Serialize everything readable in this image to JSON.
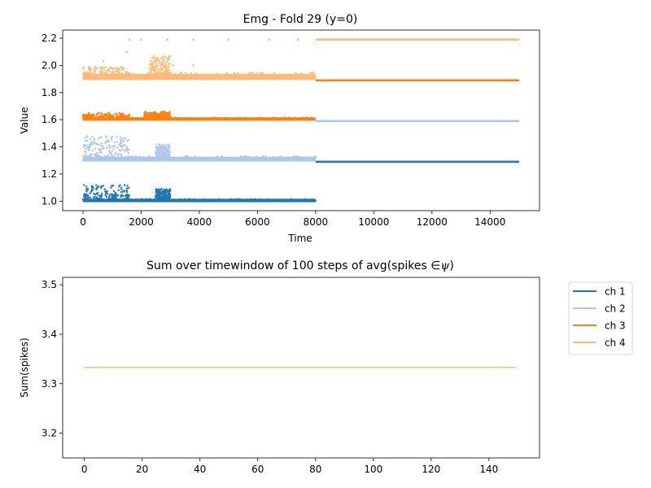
{
  "chart_data": [
    {
      "type": "scatter",
      "title": "Emg - Fold 29 (y=0)",
      "xlabel": "Time",
      "ylabel": "Value",
      "xlim": [
        -700,
        15700
      ],
      "ylim": [
        0.93,
        2.26
      ],
      "xticks": [
        0,
        2000,
        4000,
        6000,
        8000,
        10000,
        12000,
        14000
      ],
      "yticks": [
        1.0,
        1.2,
        1.4,
        1.6,
        1.8,
        2.0,
        2.2
      ],
      "ytick_labels": [
        "1.0",
        "1.2",
        "1.4",
        "1.6",
        "1.8",
        "2.0",
        "2.2"
      ],
      "grid": false,
      "series": [
        {
          "channel": "ch 1",
          "color": "#1f77b4",
          "segments": [
            {
              "x_start": 0,
              "x_end": 8000,
              "base": 1.0,
              "noise_max": 0.01
            },
            {
              "x_start": 8000,
              "x_end": 15000,
              "base": 1.29,
              "noise_max": 0.0
            }
          ],
          "bursts": [
            {
              "x_start": 0,
              "x_end": 1600,
              "max_delta": 0.12
            },
            {
              "x_start": 2500,
              "x_end": 3000,
              "max_delta": 0.09
            }
          ]
        },
        {
          "channel": "ch 2",
          "color": "#aec7e8",
          "segments": [
            {
              "x_start": 0,
              "x_end": 8000,
              "base": 1.3,
              "noise_max": 0.02
            },
            {
              "x_start": 8000,
              "x_end": 15000,
              "base": 1.59,
              "noise_max": 0.0
            }
          ],
          "bursts": [
            {
              "x_start": 0,
              "x_end": 1600,
              "max_delta": 0.18
            },
            {
              "x_start": 2500,
              "x_end": 3000,
              "max_delta": 0.12
            }
          ]
        },
        {
          "channel": "ch 3",
          "color": "#ff7f0e",
          "segments": [
            {
              "x_start": 0,
              "x_end": 8000,
              "base": 1.6,
              "noise_max": 0.01
            },
            {
              "x_start": 8000,
              "x_end": 15000,
              "base": 1.89,
              "noise_max": 0.0
            }
          ],
          "bursts": [
            {
              "x_start": 0,
              "x_end": 1600,
              "max_delta": 0.05
            },
            {
              "x_start": 2100,
              "x_end": 3000,
              "max_delta": 0.06
            }
          ]
        },
        {
          "channel": "ch 4",
          "color": "#ffbb78",
          "segments": [
            {
              "x_start": 0,
              "x_end": 8000,
              "base": 1.9,
              "noise_max": 0.03
            },
            {
              "x_start": 8000,
              "x_end": 15000,
              "base": 2.19,
              "noise_max": 0.0
            }
          ],
          "bursts": [
            {
              "x_start": 0,
              "x_end": 1600,
              "max_delta": 0.09
            },
            {
              "x_start": 2300,
              "x_end": 3000,
              "max_delta": 0.17
            }
          ],
          "outliers": [
            {
              "x": 1600,
              "y": 2.19
            },
            {
              "x": 2000,
              "y": 2.19
            },
            {
              "x": 2900,
              "y": 2.19
            },
            {
              "x": 3800,
              "y": 2.19
            },
            {
              "x": 5000,
              "y": 2.19
            },
            {
              "x": 6400,
              "y": 2.19
            },
            {
              "x": 7400,
              "y": 2.19
            },
            {
              "x": 1500,
              "y": 2.1
            },
            {
              "x": 3800,
              "y": 2.0
            },
            {
              "x": 700,
              "y": 2.03
            },
            {
              "x": 3100,
              "y": 2.0
            }
          ]
        }
      ]
    },
    {
      "type": "line",
      "title": "Sum over timewindow of 100 steps of avg(spikes ",
      "title_symbol": "∈",
      "title_math": "ψ",
      "title_close": ")",
      "xlabel": "",
      "ylabel": "Sum(spikes)",
      "xlim": [
        -7.5,
        157.5
      ],
      "ylim": [
        3.15,
        3.515
      ],
      "xticks": [
        0,
        20,
        40,
        60,
        80,
        100,
        120,
        140
      ],
      "yticks": [
        3.2,
        3.3,
        3.4,
        3.5
      ],
      "ytick_labels": [
        "3.2",
        "3.3",
        "3.4",
        "3.5"
      ],
      "grid": false,
      "legend_position": "outside-upper-right",
      "series": [
        {
          "name": "ch 1",
          "color": "#1f77b4",
          "x_range": [
            0,
            149
          ],
          "y_constant": 3.333
        },
        {
          "name": "ch 2",
          "color": "#aec7e8",
          "x_range": [
            0,
            149
          ],
          "y_constant": 3.333
        },
        {
          "name": "ch 3",
          "color": "#ff7f0e",
          "x_range": [
            0,
            149
          ],
          "y_constant": 3.333
        },
        {
          "name": "ch 4",
          "color": "#ffbb78",
          "x_range": [
            0,
            149
          ],
          "y_constant": 3.333
        }
      ]
    }
  ]
}
